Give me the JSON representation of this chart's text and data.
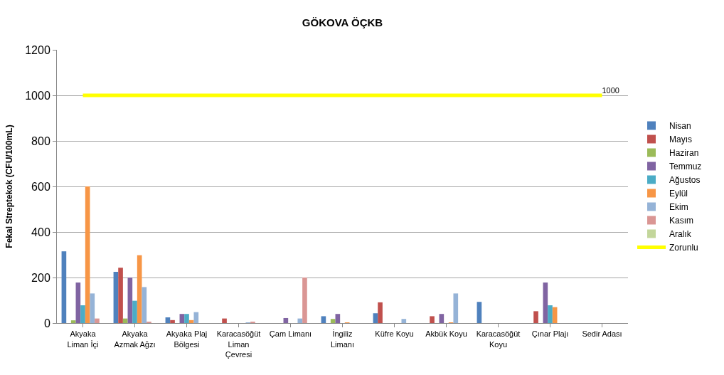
{
  "chart_data": {
    "type": "bar",
    "title": "GÖKOVA ÖÇKB",
    "ylabel": "Fekal Streptekok (CFU/100mL)",
    "categories": [
      "Akyaka Liman İçi",
      "Akyaka Azmak Ağzı",
      "Akyaka Plaj Bölgesi",
      "Karacasöğüt Liman Çevresi",
      "Çam Limanı",
      "İngiliz Limanı",
      "Küfre Koyu",
      "Akbük Koyu",
      "Karacasöğüt Koyu",
      "Çınar Plajı",
      "Sedir Adası"
    ],
    "series": [
      {
        "name": "Nisan",
        "color": "#4f81bd",
        "values": [
          315,
          225,
          25,
          0,
          0,
          30,
          43,
          0,
          93,
          0,
          0
        ]
      },
      {
        "name": "Mayıs",
        "color": "#c0504d",
        "values": [
          0,
          243,
          13,
          20,
          0,
          0,
          91,
          30,
          0,
          52,
          0
        ]
      },
      {
        "name": "Haziran",
        "color": "#9bbb59",
        "values": [
          12,
          20,
          0,
          0,
          0,
          18,
          0,
          0,
          0,
          0,
          0
        ]
      },
      {
        "name": "Temmuz",
        "color": "#8064a2",
        "values": [
          178,
          200,
          40,
          0,
          22,
          40,
          0,
          40,
          0,
          178,
          0
        ]
      },
      {
        "name": "Ağustos",
        "color": "#4bacc6",
        "values": [
          78,
          98,
          40,
          0,
          0,
          0,
          0,
          0,
          0,
          78,
          0
        ]
      },
      {
        "name": "Eylül",
        "color": "#f79646",
        "values": [
          600,
          298,
          13,
          0,
          0,
          3,
          0,
          3,
          0,
          70,
          0
        ]
      },
      {
        "name": "Ekim",
        "color": "#95b3d7",
        "values": [
          130,
          158,
          48,
          3,
          20,
          0,
          18,
          130,
          0,
          0,
          0
        ]
      },
      {
        "name": "Kasım",
        "color": "#da9694",
        "values": [
          20,
          4,
          0,
          5,
          200,
          0,
          0,
          0,
          0,
          0,
          0
        ]
      },
      {
        "name": "Aralık",
        "color": "#c3d69b",
        "values": [
          0,
          0,
          0,
          0,
          0,
          0,
          0,
          0,
          0,
          0,
          0
        ]
      },
      {
        "name": "Zorunlu",
        "color": "#ffff00",
        "type": "line",
        "values": [
          1000,
          1000,
          1000,
          1000,
          1000,
          1000,
          1000,
          1000,
          1000,
          1000,
          1000
        ],
        "value_labels": [
          null,
          null,
          null,
          null,
          null,
          null,
          null,
          null,
          null,
          null,
          "1000"
        ]
      }
    ],
    "ylim": [
      0,
      1200
    ],
    "yticks": [
      0,
      200,
      400,
      600,
      800,
      1000,
      1200
    ],
    "grid": "y",
    "legend": "right"
  }
}
